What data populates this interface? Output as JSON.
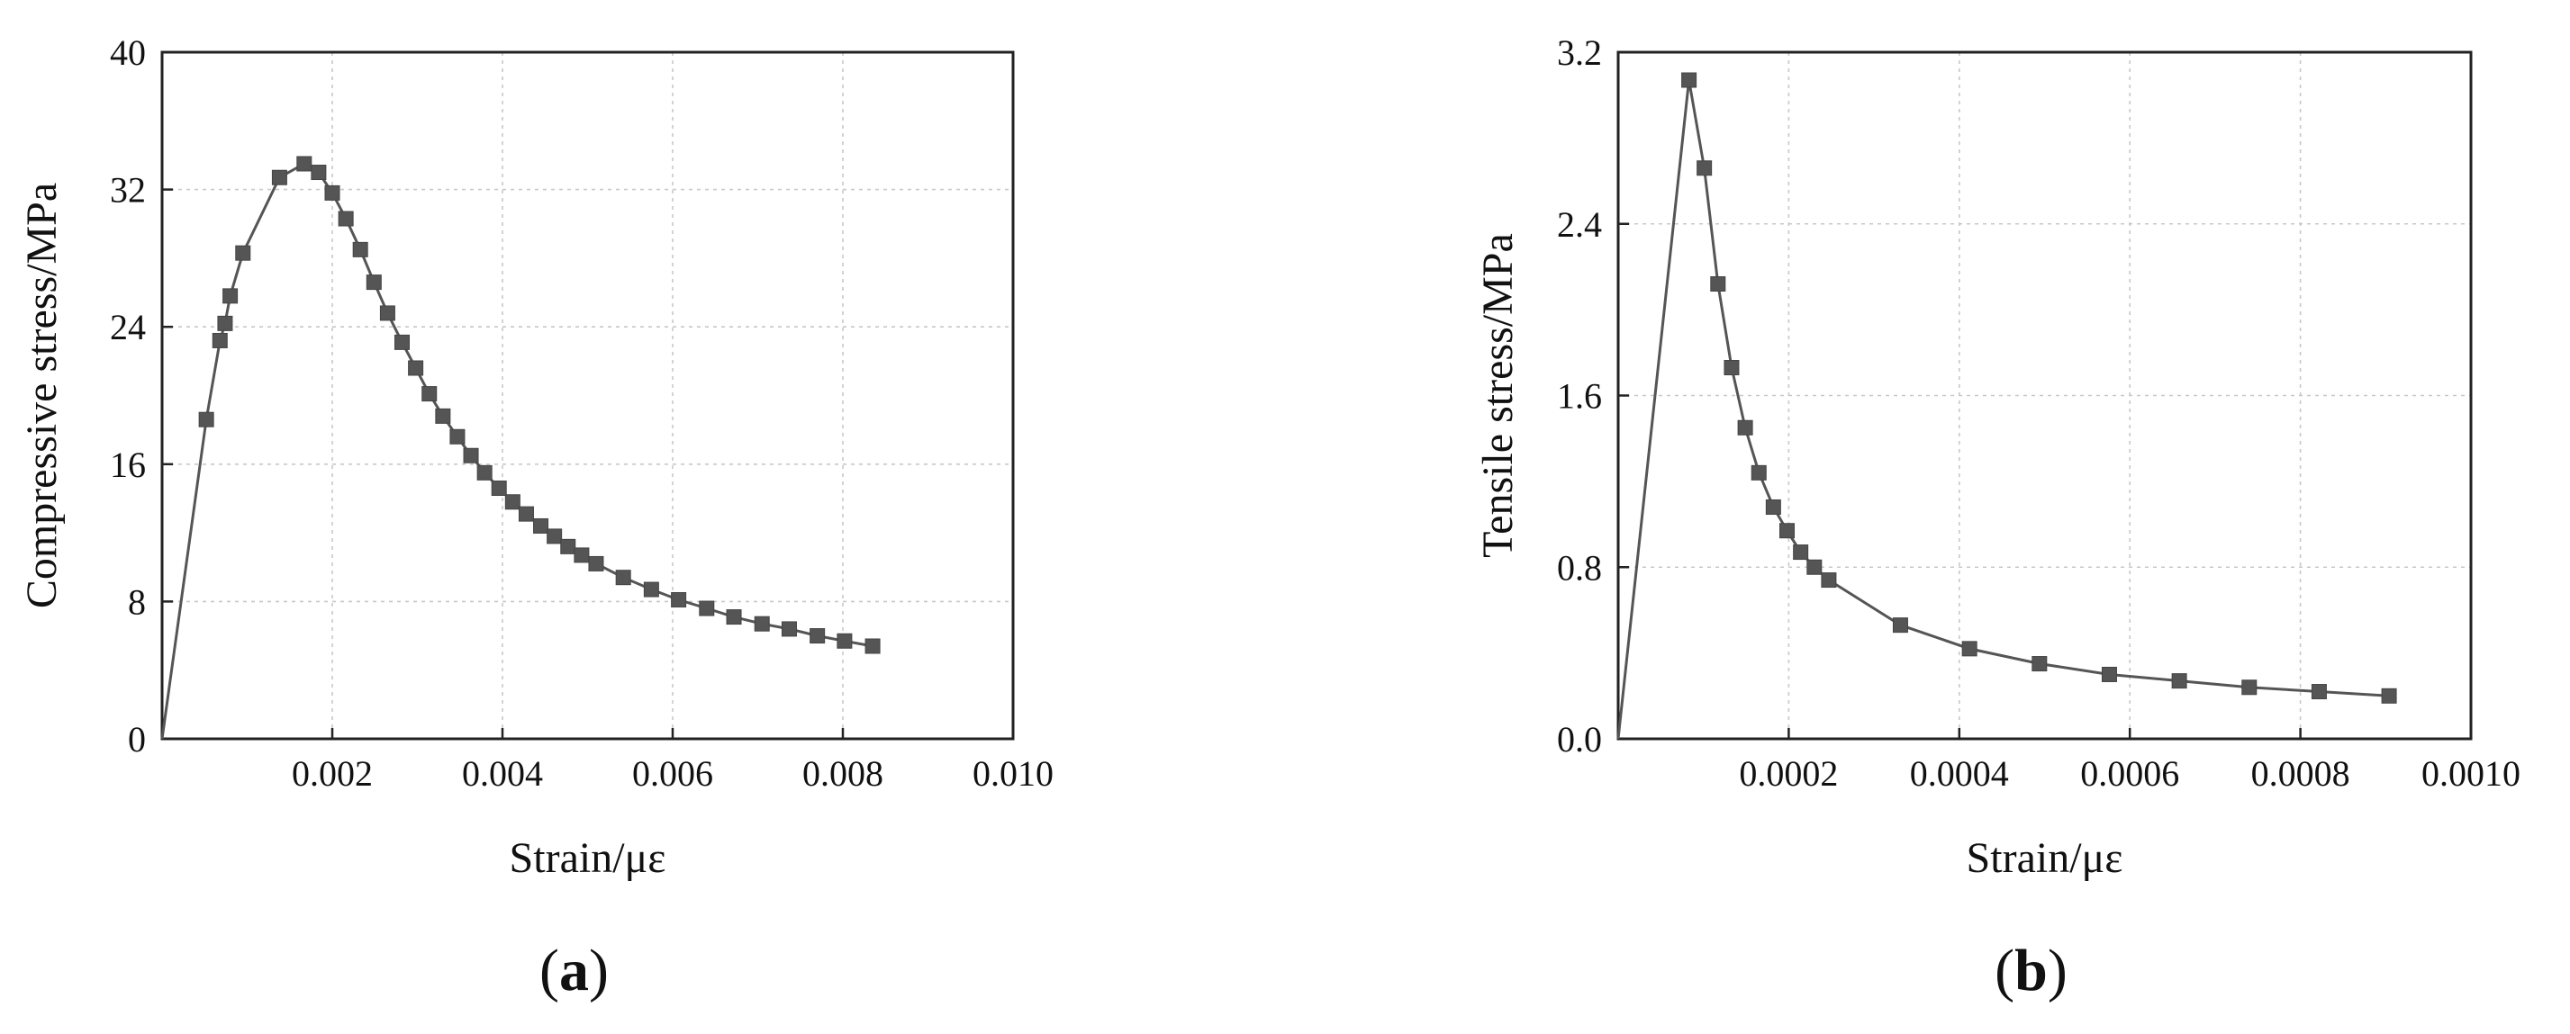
{
  "chart_data": [
    {
      "type": "line",
      "panel": "a",
      "xlabel": "Strain/με",
      "ylabel": "Compressive stress/MPa",
      "xlim": [
        0,
        0.01
      ],
      "ylim": [
        0,
        40
      ],
      "xticks": [
        0.002,
        0.004,
        0.006,
        0.008,
        0.01
      ],
      "xtick_labels": [
        "0.002",
        "0.004",
        "0.006",
        "0.008",
        "0.010"
      ],
      "yticks": [
        0,
        8,
        16,
        24,
        32,
        40
      ],
      "ytick_labels": [
        "0",
        "8",
        "16",
        "24",
        "32",
        "40"
      ],
      "grid": true,
      "series": [
        {
          "marker": "square",
          "color": "#555555",
          "x": [
            0,
            0.00052,
            0.00068,
            0.00074,
            0.0008,
            0.00095,
            0.00138,
            0.00167,
            0.00184,
            0.002,
            0.00216,
            0.00233,
            0.00249,
            0.00265,
            0.00282,
            0.00298,
            0.00314,
            0.0033,
            0.00347,
            0.00363,
            0.00379,
            0.00396,
            0.00412,
            0.00428,
            0.00445,
            0.00461,
            0.00477,
            0.00493,
            0.0051,
            0.00542,
            0.00575,
            0.00607,
            0.0064,
            0.00672,
            0.00705,
            0.00737,
            0.0077,
            0.00802,
            0.00835
          ],
          "y": [
            0,
            18.6,
            23.2,
            24.2,
            25.8,
            28.3,
            32.7,
            33.5,
            33.0,
            31.8,
            30.3,
            28.5,
            26.6,
            24.8,
            23.1,
            21.6,
            20.1,
            18.8,
            17.6,
            16.5,
            15.5,
            14.6,
            13.8,
            13.1,
            12.4,
            11.8,
            11.2,
            10.7,
            10.2,
            9.4,
            8.7,
            8.1,
            7.6,
            7.1,
            6.7,
            6.4,
            6.0,
            5.7,
            5.4
          ]
        }
      ]
    },
    {
      "type": "line",
      "panel": "b",
      "xlabel": "Strain/με",
      "ylabel": "Tensile stress/MPa",
      "xlim": [
        0,
        0.001
      ],
      "ylim": [
        0,
        3.2
      ],
      "xticks": [
        0.0002,
        0.0004,
        0.0006,
        0.0008,
        0.001
      ],
      "xtick_labels": [
        "0.0002",
        "0.0004",
        "0.0006",
        "0.0008",
        "0.0010"
      ],
      "yticks": [
        0,
        0.8,
        1.6,
        2.4,
        3.2
      ],
      "ytick_labels": [
        "0.0",
        "0.8",
        "1.6",
        "2.4",
        "3.2"
      ],
      "grid": true,
      "series": [
        {
          "marker": "square",
          "color": "#555555",
          "x": [
            0,
            8.3e-05,
            0.000101,
            0.000117,
            0.000133,
            0.000149,
            0.000165,
            0.000182,
            0.000198,
            0.000214,
            0.00023,
            0.000247,
            0.000331,
            0.000412,
            0.000494,
            0.000576,
            0.000658,
            0.00074,
            0.000822,
            0.000904
          ],
          "y": [
            0,
            3.07,
            2.66,
            2.12,
            1.73,
            1.45,
            1.24,
            1.08,
            0.97,
            0.87,
            0.8,
            0.74,
            0.53,
            0.42,
            0.35,
            0.3,
            0.27,
            0.24,
            0.22,
            0.2
          ]
        }
      ]
    }
  ],
  "panels": {
    "a": {
      "label": "a"
    },
    "b": {
      "label": "b"
    }
  }
}
